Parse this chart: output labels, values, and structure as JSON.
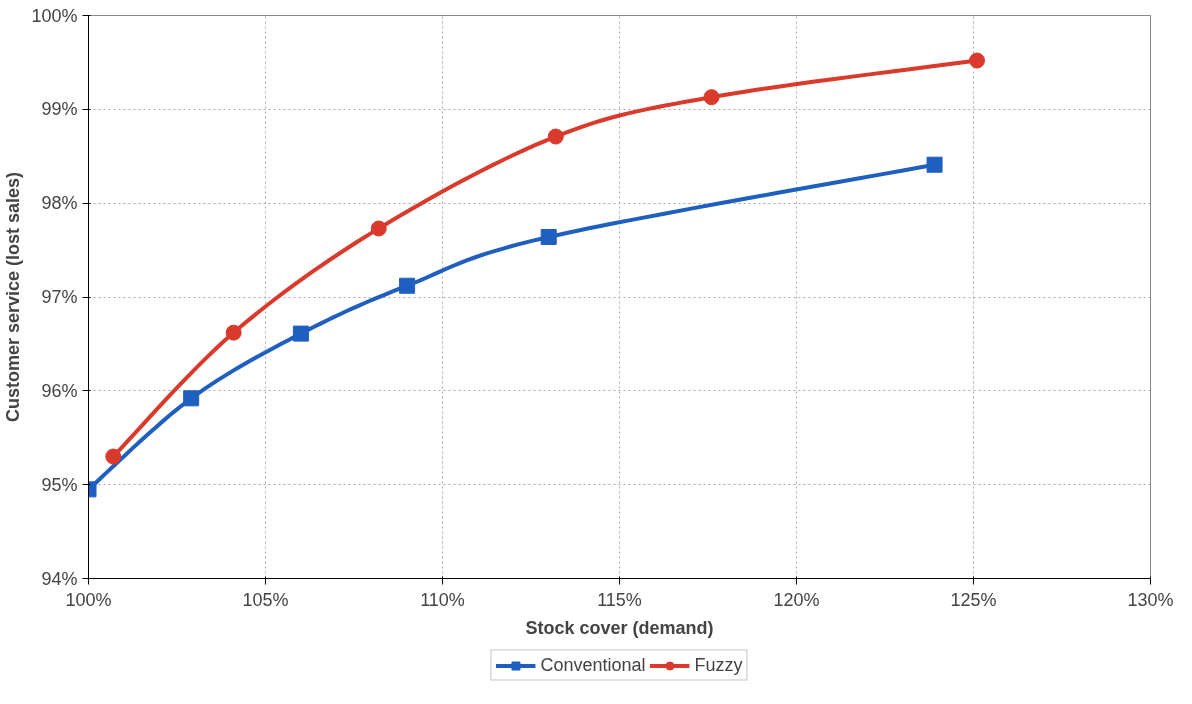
{
  "chart_data": {
    "type": "line",
    "xlabel": "Stock cover (demand)",
    "ylabel": "Customer service (lost sales)",
    "xlim": [
      100,
      130
    ],
    "xticks": [
      {
        "value": 100,
        "label": "100%"
      },
      {
        "value": 105,
        "label": "105%"
      },
      {
        "value": 110,
        "label": "110%"
      },
      {
        "value": 115,
        "label": "115%"
      },
      {
        "value": 120,
        "label": "120%"
      },
      {
        "value": 125,
        "label": "125%"
      },
      {
        "value": 130,
        "label": "130%"
      }
    ],
    "ylim": [
      94,
      100
    ],
    "yticks": [
      {
        "value": 94,
        "label": "94%"
      },
      {
        "value": 95,
        "label": "95%"
      },
      {
        "value": 96,
        "label": "96%"
      },
      {
        "value": 97,
        "label": "97%"
      },
      {
        "value": 98,
        "label": "98%"
      },
      {
        "value": 99,
        "label": "99%"
      },
      {
        "value": 100,
        "label": "100%"
      }
    ],
    "grid": true,
    "legend": "bottom",
    "series": [
      {
        "name": "Conventional",
        "color": "#1f5fbf",
        "marker": "square",
        "x": [
          100,
          102.9,
          106.0,
          109.0,
          113.0,
          123.9
        ],
        "values": [
          94.95,
          95.92,
          96.61,
          97.12,
          97.64,
          98.41
        ]
      },
      {
        "name": "Fuzzy",
        "color": "#d93a2b",
        "marker": "circle",
        "x": [
          100.7,
          104.1,
          108.2,
          113.2,
          117.6,
          125.1
        ],
        "values": [
          95.3,
          96.62,
          97.73,
          98.71,
          99.13,
          99.52
        ]
      }
    ]
  }
}
